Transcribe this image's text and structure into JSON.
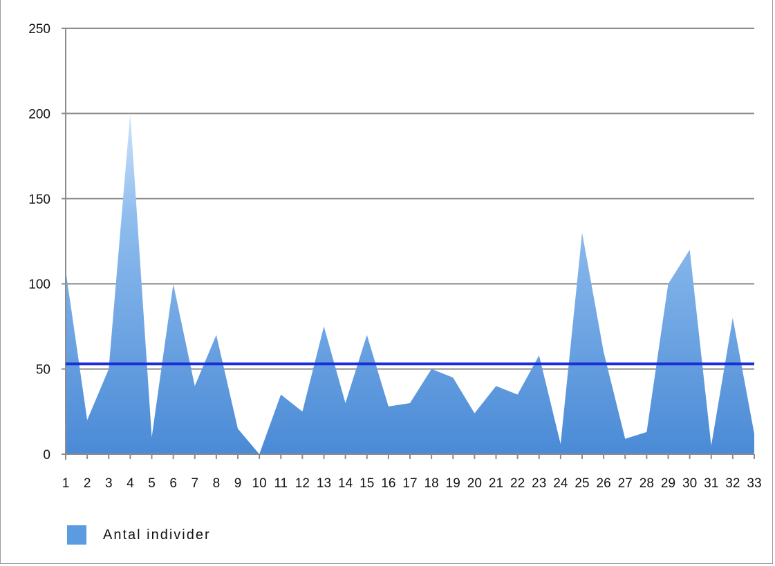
{
  "chart_data": {
    "type": "area",
    "title": "",
    "xlabel": "",
    "ylabel": "",
    "categories": [
      "1",
      "2",
      "3",
      "4",
      "5",
      "6",
      "7",
      "8",
      "9",
      "10",
      "11",
      "12",
      "13",
      "14",
      "15",
      "16",
      "17",
      "18",
      "19",
      "20",
      "21",
      "22",
      "23",
      "24",
      "25",
      "26",
      "27",
      "28",
      "29",
      "30",
      "31",
      "32",
      "33"
    ],
    "series": [
      {
        "name": "Antal individer",
        "values": [
          108,
          20,
          50,
          200,
          10,
          100,
          40,
          70,
          15,
          0,
          35,
          25,
          75,
          30,
          70,
          28,
          30,
          50,
          45,
          24,
          40,
          35,
          58,
          6,
          130,
          60,
          9,
          13,
          100,
          120,
          5,
          80,
          12
        ],
        "color": "#5b9be0"
      }
    ],
    "reference_line": {
      "value": 53,
      "color": "#1a2fd8"
    },
    "ylim": [
      0,
      250
    ],
    "yticks": [
      "0",
      "50",
      "100",
      "150",
      "200",
      "250"
    ],
    "grid": true,
    "legend": "bottom-left"
  }
}
